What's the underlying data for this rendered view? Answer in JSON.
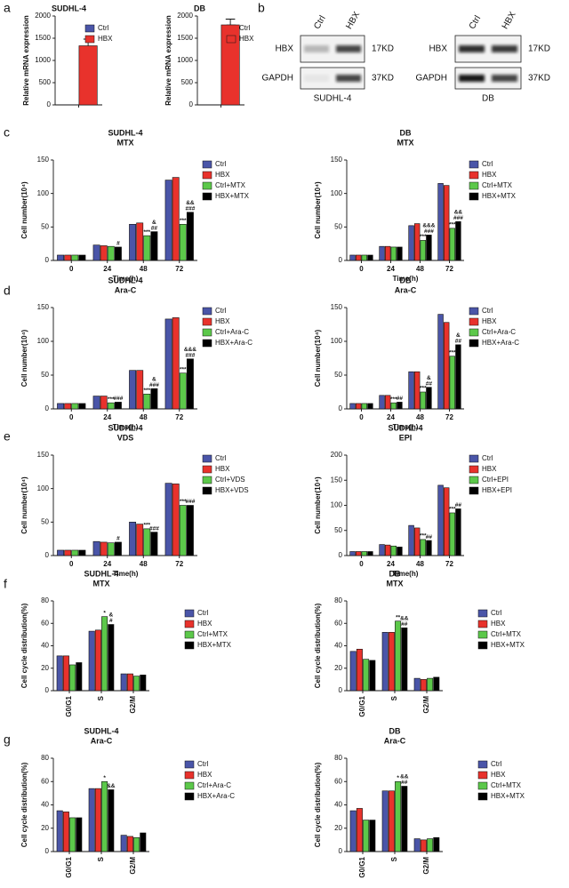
{
  "panel_labels": [
    "a",
    "b",
    "c",
    "d",
    "e",
    "f",
    "g"
  ],
  "blots": [
    {
      "lanes": [
        "Ctrl",
        "HBX"
      ],
      "rows": [
        {
          "protein": "HBX",
          "size": "17KD"
        },
        {
          "protein": "GAPDH",
          "size": "37KD"
        }
      ],
      "cell_line": "SUDHL-4"
    },
    {
      "lanes": [
        "Ctrl",
        "HBX"
      ],
      "rows": [
        {
          "protein": "HBX",
          "size": "17KD"
        },
        {
          "protein": "GAPDH",
          "size": "37KD"
        }
      ],
      "cell_line": "DB"
    }
  ],
  "chart_data": [
    {
      "type": "bar",
      "title": "SUDHL-4",
      "ylabel": "Relative mRNA expression",
      "categories": [
        null
      ],
      "series": [
        {
          "name": "Ctrl",
          "color": "#4a55a8",
          "values": [
            1
          ],
          "errors": [
            0
          ]
        },
        {
          "name": "HBX",
          "color": "#e8322c",
          "values": [
            1330
          ],
          "errors": [
            150
          ]
        }
      ],
      "ylim": [
        0,
        2000
      ],
      "yticks": [
        0,
        500,
        1000,
        1500,
        2000
      ]
    },
    {
      "type": "bar",
      "title": "DB",
      "ylabel": "Relative mRNA expression",
      "categories": [
        null
      ],
      "series": [
        {
          "name": "Ctrl",
          "color": "#4a55a8",
          "values": [
            1
          ],
          "errors": [
            0
          ]
        },
        {
          "name": "HBX",
          "color": "#e8322c",
          "values": [
            1800
          ],
          "errors": [
            130
          ]
        }
      ],
      "ylim": [
        0,
        2000
      ],
      "yticks": [
        0,
        500,
        1000,
        1500,
        2000
      ]
    },
    {
      "type": "bar",
      "title": "SUDHL-4",
      "subtitle": "MTX",
      "xlabel": "Time(h)",
      "ylabel": "Cell number(10⁴)",
      "categories": [
        "0",
        "24",
        "48",
        "72"
      ],
      "series": [
        {
          "name": "Ctrl",
          "color": "#4a55a8",
          "values": [
            8,
            23,
            54,
            120
          ]
        },
        {
          "name": "HBX",
          "color": "#e8322c",
          "values": [
            8,
            22,
            56,
            124
          ]
        },
        {
          "name": "Ctrl+MTX",
          "color": "#5cc84a",
          "values": [
            8,
            21,
            37,
            54
          ],
          "annotations": [
            null,
            null,
            [
              "***"
            ],
            [
              "***"
            ]
          ]
        },
        {
          "name": "HBX+MTX",
          "color": "#000000",
          "values": [
            8,
            20,
            43,
            72
          ],
          "annotations": [
            null,
            [
              "#"
            ],
            [
              "&",
              "##"
            ],
            [
              "&&",
              "###"
            ]
          ]
        }
      ],
      "ylim": [
        0,
        150
      ],
      "yticks": [
        0,
        50,
        100,
        150
      ]
    },
    {
      "type": "bar",
      "title": "DB",
      "subtitle": "MTX",
      "xlabel": "Time(h)",
      "ylabel": "Cell number(10⁴)",
      "categories": [
        "0",
        "24",
        "48",
        "72"
      ],
      "series": [
        {
          "name": "Ctrl",
          "color": "#4a55a8",
          "values": [
            8,
            21,
            52,
            115
          ]
        },
        {
          "name": "HBX",
          "color": "#e8322c",
          "values": [
            8,
            21,
            55,
            112
          ]
        },
        {
          "name": "Ctrl+MTX",
          "color": "#5cc84a",
          "values": [
            8,
            20,
            30,
            48
          ],
          "annotations": [
            null,
            null,
            [
              "***"
            ],
            [
              "***"
            ]
          ]
        },
        {
          "name": "HBX+MTX",
          "color": "#000000",
          "values": [
            8,
            20,
            38,
            58
          ],
          "annotations": [
            null,
            null,
            [
              "&&&",
              "###"
            ],
            [
              "&&",
              "###"
            ]
          ]
        }
      ],
      "ylim": [
        0,
        150
      ],
      "yticks": [
        0,
        50,
        100,
        150
      ]
    },
    {
      "type": "bar",
      "title": "SUDHL-4",
      "subtitle": "Ara-C",
      "xlabel": "Time(h)",
      "ylabel": "Cell number(10⁴)",
      "categories": [
        "0",
        "24",
        "48",
        "72"
      ],
      "series": [
        {
          "name": "Ctrl",
          "color": "#4a55a8",
          "values": [
            8,
            19,
            57,
            133
          ]
        },
        {
          "name": "HBX",
          "color": "#e8322c",
          "values": [
            8,
            19,
            57,
            135
          ]
        },
        {
          "name": "Ctrl+Ara-C",
          "color": "#5cc84a",
          "values": [
            8,
            9,
            22,
            53
          ],
          "annotations": [
            null,
            [
              "***"
            ],
            [
              "***"
            ],
            [
              "***"
            ]
          ]
        },
        {
          "name": "HBX+Ara-C",
          "color": "#000000",
          "values": [
            8,
            10,
            30,
            74
          ],
          "annotations": [
            null,
            [
              "###"
            ],
            [
              "&",
              "###"
            ],
            [
              "&&&",
              "###"
            ]
          ]
        }
      ],
      "ylim": [
        0,
        150
      ],
      "yticks": [
        0,
        50,
        100,
        150
      ]
    },
    {
      "type": "bar",
      "title": "DB",
      "subtitle": "Ara-C",
      "xlabel": "Time(h)",
      "ylabel": "Cell number(10⁴)",
      "categories": [
        "0",
        "24",
        "48",
        "72"
      ],
      "series": [
        {
          "name": "Ctrl",
          "color": "#4a55a8",
          "values": [
            8,
            20,
            55,
            140
          ]
        },
        {
          "name": "HBX",
          "color": "#e8322c",
          "values": [
            8,
            20,
            55,
            128
          ]
        },
        {
          "name": "Ctrl+Ara-C",
          "color": "#5cc84a",
          "values": [
            8,
            9,
            25,
            78
          ],
          "annotations": [
            null,
            [
              "***"
            ],
            [
              "***"
            ],
            [
              "***"
            ]
          ]
        },
        {
          "name": "HBX+Ara-C",
          "color": "#000000",
          "values": [
            8,
            10,
            32,
            95
          ],
          "annotations": [
            null,
            [
              "##"
            ],
            [
              "&",
              "##"
            ],
            [
              "&",
              "##"
            ]
          ]
        }
      ],
      "ylim": [
        0,
        150
      ],
      "yticks": [
        0,
        50,
        100,
        150
      ]
    },
    {
      "type": "bar",
      "title": "SUDHL-4",
      "subtitle": "VDS",
      "xlabel": "Time(h)",
      "ylabel": "Cell number(10⁴)",
      "categories": [
        "0",
        "24",
        "48",
        "72"
      ],
      "series": [
        {
          "name": "Ctrl",
          "color": "#4a55a8",
          "values": [
            8,
            21,
            50,
            108
          ]
        },
        {
          "name": "HBX",
          "color": "#e8322c",
          "values": [
            8,
            20,
            47,
            107
          ]
        },
        {
          "name": "Ctrl+VDS",
          "color": "#5cc84a",
          "values": [
            8,
            19,
            40,
            75
          ],
          "annotations": [
            null,
            null,
            [
              "***"
            ],
            [
              "***"
            ]
          ]
        },
        {
          "name": "HBX+VDS",
          "color": "#000000",
          "values": [
            8,
            20,
            35,
            75
          ],
          "annotations": [
            null,
            [
              "#"
            ],
            [
              "###"
            ],
            [
              "###"
            ]
          ]
        }
      ],
      "ylim": [
        0,
        150
      ],
      "yticks": [
        0,
        50,
        100,
        150
      ]
    },
    {
      "type": "bar",
      "title": "SUDHL-4",
      "subtitle": "EPI",
      "xlabel": "Time(h)",
      "ylabel": "Cell number(10⁴)",
      "categories": [
        "0",
        "24",
        "48",
        "72"
      ],
      "series": [
        {
          "name": "Ctrl",
          "color": "#4a55a8",
          "values": [
            8,
            22,
            60,
            140
          ]
        },
        {
          "name": "HBX",
          "color": "#e8322c",
          "values": [
            8,
            21,
            55,
            135
          ]
        },
        {
          "name": "Ctrl+EPI",
          "color": "#5cc84a",
          "values": [
            8,
            19,
            32,
            85
          ],
          "annotations": [
            null,
            null,
            [
              "***"
            ],
            [
              "***"
            ]
          ]
        },
        {
          "name": "HBX+EPI",
          "color": "#000000",
          "values": [
            8,
            17,
            30,
            93
          ],
          "annotations": [
            null,
            null,
            [
              "##"
            ],
            [
              "##"
            ]
          ]
        }
      ],
      "ylim": [
        0,
        200
      ],
      "yticks": [
        0,
        50,
        100,
        150,
        200
      ]
    },
    {
      "type": "bar",
      "title": "SUDHL-4",
      "subtitle": "MTX",
      "ylabel": "Cell cycle distribution(%)",
      "categories": [
        "G0/G1",
        "S",
        "G2/M"
      ],
      "series": [
        {
          "name": "Ctrl",
          "color": "#4a55a8",
          "values": [
            31,
            53,
            15
          ]
        },
        {
          "name": "HBX",
          "color": "#e8322c",
          "values": [
            31,
            54,
            15
          ]
        },
        {
          "name": "Ctrl+MTX",
          "color": "#5cc84a",
          "values": [
            23,
            66,
            13
          ],
          "annotations": [
            null,
            [
              "*"
            ],
            null
          ]
        },
        {
          "name": "HBX+MTX",
          "color": "#000000",
          "values": [
            25,
            59,
            14
          ],
          "annotations": [
            null,
            [
              "&",
              "#"
            ],
            null
          ]
        }
      ],
      "ylim": [
        0,
        80
      ],
      "yticks": [
        0,
        20,
        40,
        60,
        80
      ]
    },
    {
      "type": "bar",
      "title": "DB",
      "subtitle": "MTX",
      "ylabel": "Cell cycle distribution(%)",
      "categories": [
        "G0/G1",
        "S",
        "G2/M"
      ],
      "series": [
        {
          "name": "Ctrl",
          "color": "#4a55a8",
          "values": [
            35,
            52,
            11
          ]
        },
        {
          "name": "HBX",
          "color": "#e8322c",
          "values": [
            37,
            52,
            10
          ]
        },
        {
          "name": "Ctrl+MTX",
          "color": "#5cc84a",
          "values": [
            28,
            62,
            11
          ],
          "annotations": [
            null,
            [
              "**"
            ],
            null
          ]
        },
        {
          "name": "HBX+MTX",
          "color": "#000000",
          "values": [
            27,
            56,
            12
          ],
          "annotations": [
            null,
            [
              "&&",
              "##"
            ],
            null
          ]
        }
      ],
      "ylim": [
        0,
        80
      ],
      "yticks": [
        0,
        20,
        40,
        60,
        80
      ]
    },
    {
      "type": "bar",
      "title": "SUDHL-4",
      "subtitle": "Ara-C",
      "ylabel": "Cell cycle distribution(%)",
      "categories": [
        "G0/G1",
        "S",
        "G2/M"
      ],
      "series": [
        {
          "name": "Ctrl",
          "color": "#4a55a8",
          "values": [
            35,
            54,
            14
          ]
        },
        {
          "name": "HBX",
          "color": "#e8322c",
          "values": [
            34,
            54,
            13
          ]
        },
        {
          "name": "Ctrl+Ara-C",
          "color": "#5cc84a",
          "values": [
            29,
            60,
            12
          ],
          "annotations": [
            null,
            [
              "*"
            ],
            null
          ]
        },
        {
          "name": "HBX+Ara-C",
          "color": "#000000",
          "values": [
            29,
            53,
            16
          ],
          "annotations": [
            null,
            [
              "&&"
            ],
            null
          ]
        }
      ],
      "ylim": [
        0,
        80
      ],
      "yticks": [
        0,
        20,
        40,
        60,
        80
      ]
    },
    {
      "type": "bar",
      "title": "DB",
      "subtitle": "Ara-C",
      "ylabel": "Cell cycle distribution(%)",
      "categories": [
        "G0/G1",
        "S",
        "G2/M"
      ],
      "series": [
        {
          "name": "Ctrl",
          "color": "#4a55a8",
          "values": [
            35,
            52,
            11
          ]
        },
        {
          "name": "HBX",
          "color": "#e8322c",
          "values": [
            37,
            52,
            10
          ]
        },
        {
          "name": "Ctrl+MTX",
          "color": "#5cc84a",
          "values": [
            27,
            60,
            11
          ],
          "annotations": [
            null,
            [
              "*"
            ],
            null
          ]
        },
        {
          "name": "HBX+MTX",
          "color": "#000000",
          "values": [
            27,
            56,
            12
          ],
          "annotations": [
            null,
            [
              "&&",
              "##"
            ],
            null
          ]
        }
      ],
      "ylim": [
        0,
        80
      ],
      "yticks": [
        0,
        20,
        40,
        60,
        80
      ]
    }
  ]
}
